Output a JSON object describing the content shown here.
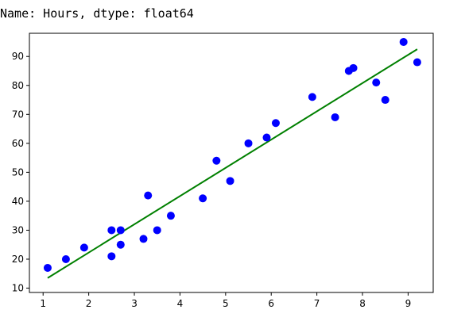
{
  "output": {
    "text": "Name: Hours, dtype: float64"
  },
  "chart_data": {
    "type": "scatter",
    "title": "",
    "xlabel": "",
    "ylabel": "",
    "xlim": [
      0.7,
      9.55
    ],
    "ylim": [
      8.5,
      98
    ],
    "xticks": [
      1,
      2,
      3,
      4,
      5,
      6,
      7,
      8,
      9
    ],
    "yticks": [
      10,
      20,
      30,
      40,
      50,
      60,
      70,
      80,
      90
    ],
    "grid": false,
    "legend": "none",
    "colors": {
      "points": "#0000ff",
      "line": "#008000"
    },
    "series": [
      {
        "kind": "scatter",
        "points": [
          [
            1.1,
            17
          ],
          [
            1.5,
            20
          ],
          [
            1.9,
            24
          ],
          [
            2.5,
            21
          ],
          [
            2.5,
            30
          ],
          [
            2.7,
            25
          ],
          [
            2.7,
            30
          ],
          [
            3.2,
            27
          ],
          [
            3.3,
            42
          ],
          [
            3.5,
            30
          ],
          [
            3.8,
            35
          ],
          [
            4.5,
            41
          ],
          [
            4.8,
            54
          ],
          [
            5.1,
            47
          ],
          [
            5.5,
            60
          ],
          [
            5.9,
            62
          ],
          [
            6.1,
            67
          ],
          [
            6.9,
            76
          ],
          [
            7.4,
            69
          ],
          [
            7.7,
            85
          ],
          [
            7.8,
            86
          ],
          [
            8.3,
            81
          ],
          [
            8.5,
            75
          ],
          [
            8.9,
            95
          ],
          [
            9.2,
            88
          ]
        ]
      },
      {
        "kind": "line",
        "points": [
          [
            1.1,
            13.5
          ],
          [
            9.2,
            92.5
          ]
        ]
      }
    ]
  }
}
